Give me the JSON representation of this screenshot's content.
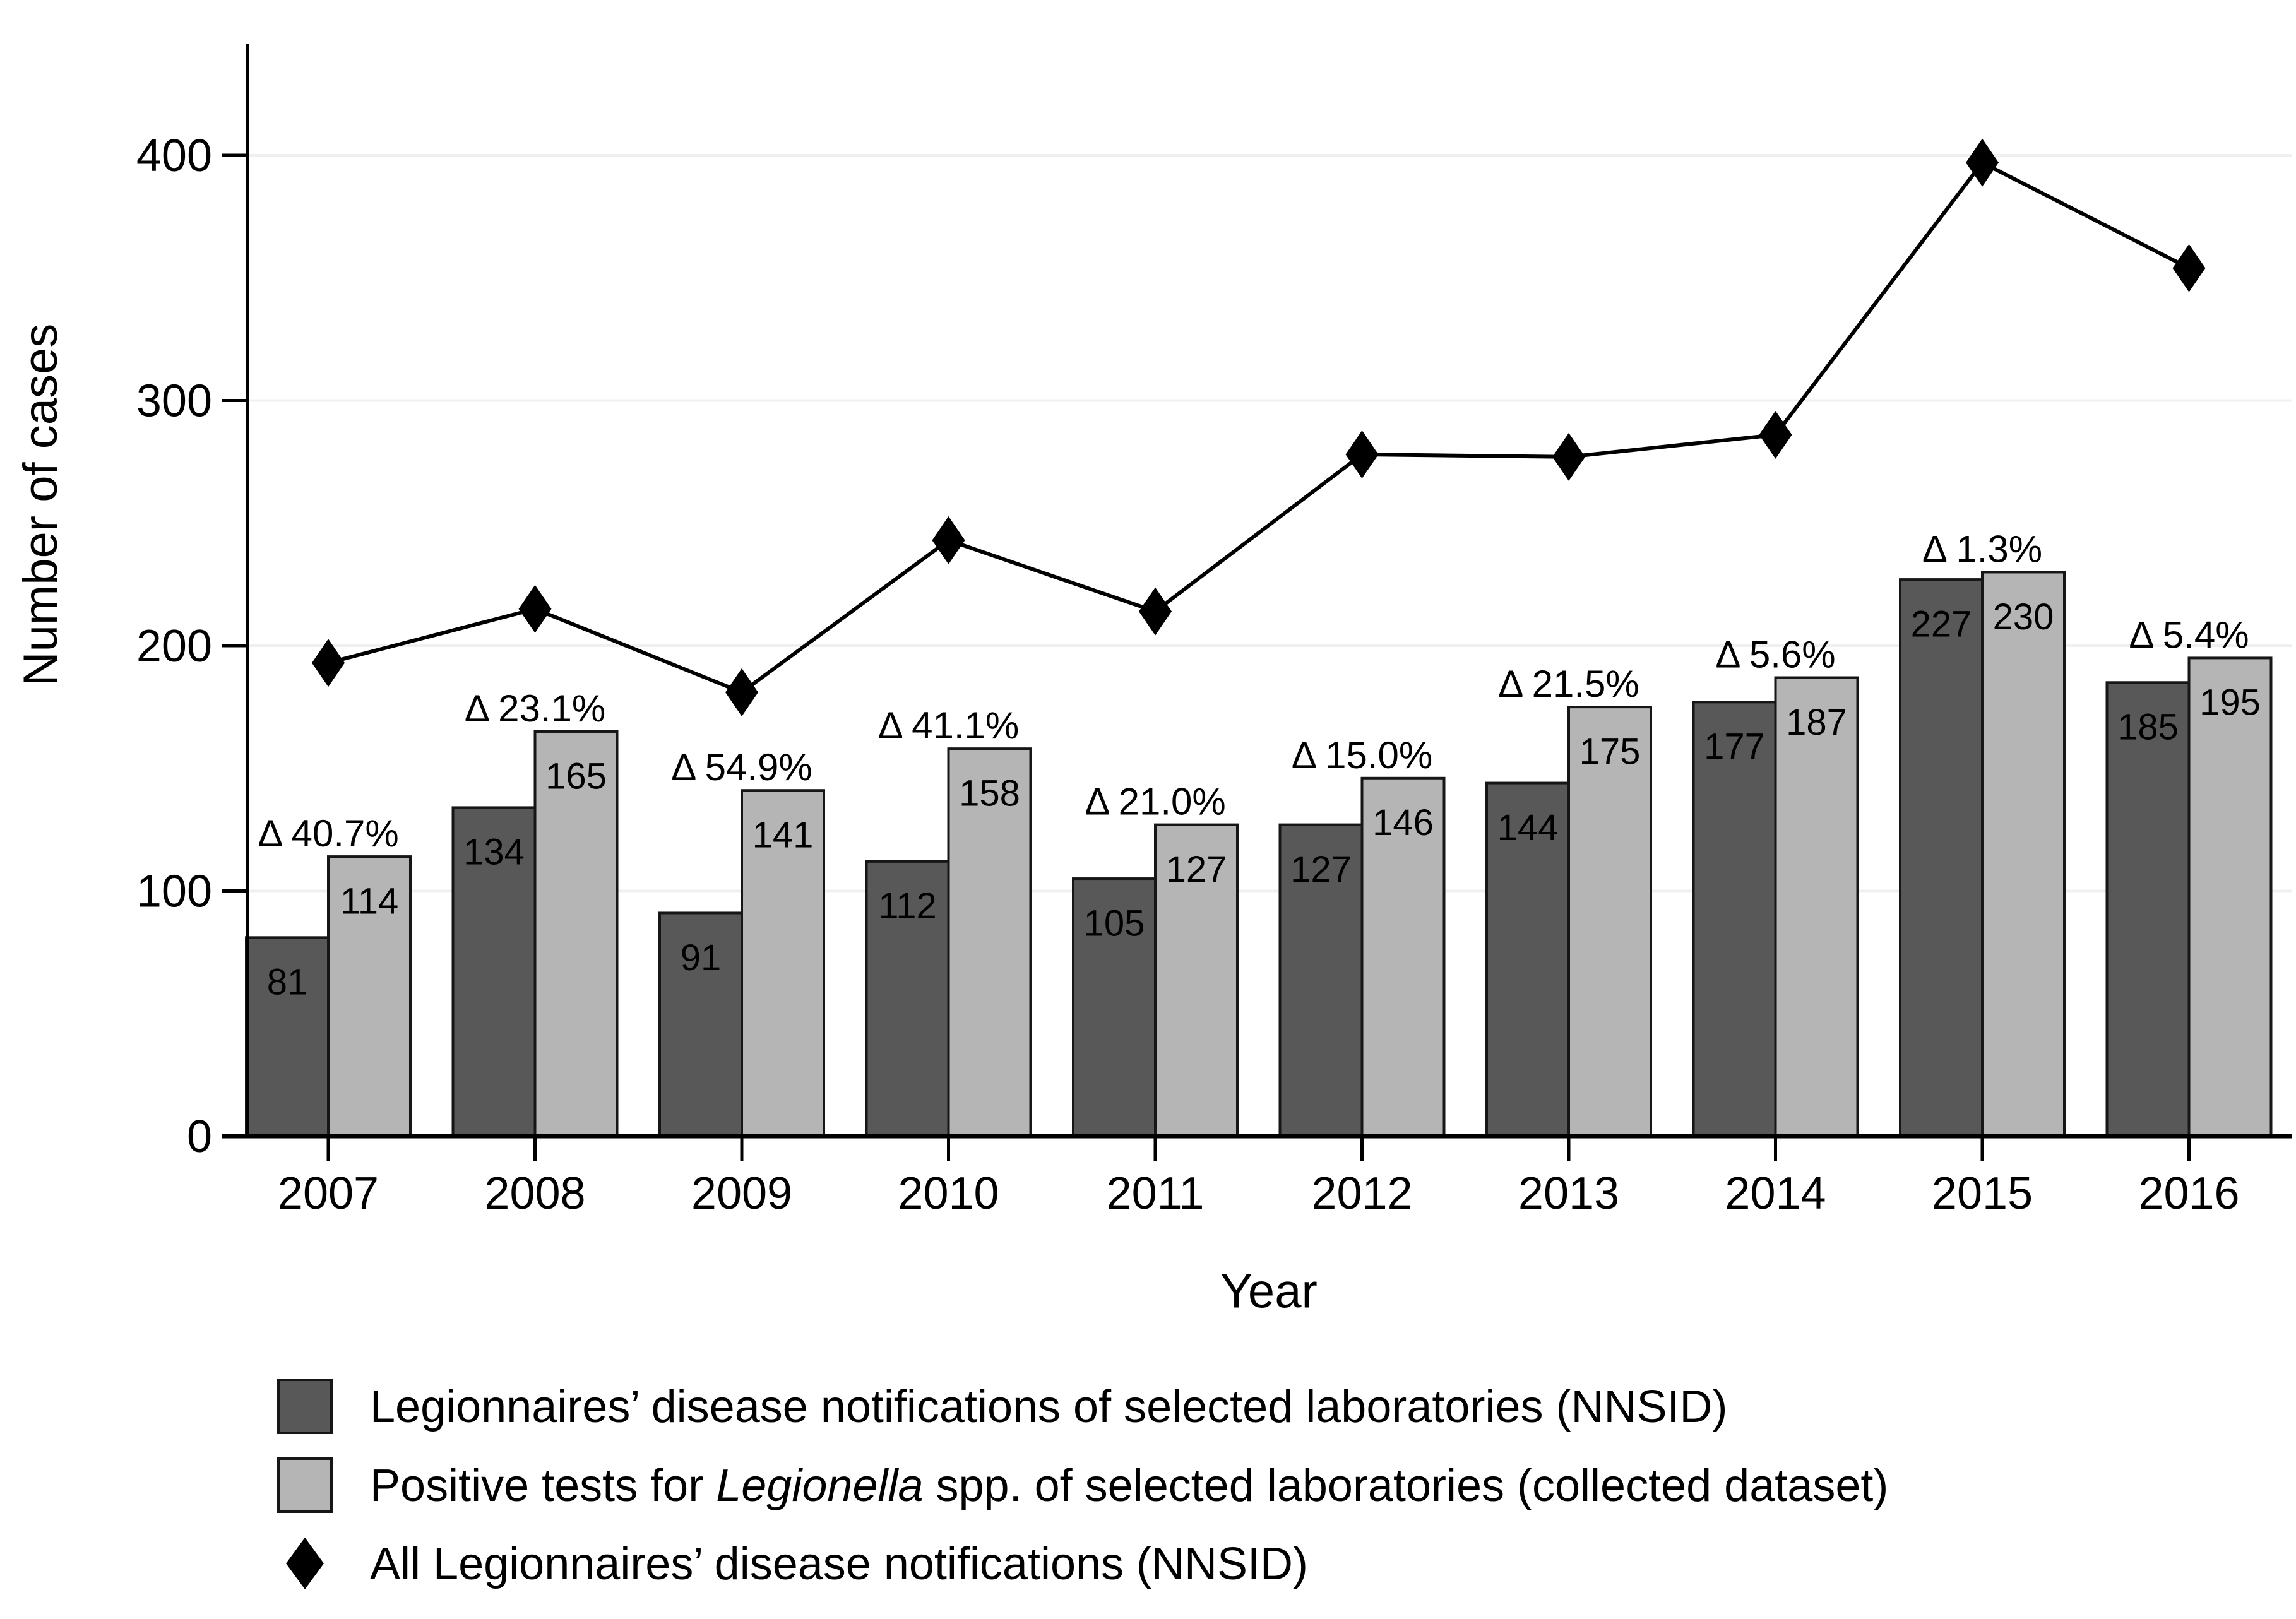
{
  "chart_data": {
    "type": "bar+line",
    "title": "",
    "xlabel": "Year",
    "ylabel": "Number of cases",
    "categories": [
      "2007",
      "2008",
      "2009",
      "2010",
      "2011",
      "2012",
      "2013",
      "2014",
      "2015",
      "2016"
    ],
    "yticks": [
      0,
      100,
      200,
      300,
      400
    ],
    "ylim": [
      0,
      445
    ],
    "grid": "horizontal",
    "legend_position": "below-chart-left",
    "series": [
      {
        "name": "Legionnaires’ disease notifications of selected laboratories (NNSID)",
        "type": "bar",
        "color": "#585858",
        "values": [
          81,
          134,
          91,
          112,
          105,
          127,
          144,
          177,
          227,
          185
        ]
      },
      {
        "name": "Positive tests for Legionella spp. of selected laboratories (collected dataset)",
        "type": "bar",
        "color": "#b5b5b5",
        "values": [
          114,
          165,
          141,
          158,
          127,
          146,
          175,
          187,
          230,
          195
        ]
      },
      {
        "name": "All Legionnaires’ disease notifications (NNSID)",
        "type": "line",
        "color": "#000000",
        "marker": "diamond",
        "values": [
          193,
          215,
          181,
          243,
          214,
          278,
          277,
          286,
          397,
          354
        ]
      }
    ],
    "delta_labels": [
      "Δ 40.7%",
      "Δ 23.1%",
      "Δ 54.9%",
      "Δ 41.1%",
      "Δ 21.0%",
      "Δ 15.0%",
      "Δ 21.5%",
      "Δ 5.6%",
      "Δ 1.3%",
      "Δ 5.4%"
    ]
  },
  "legend": {
    "items": [
      {
        "icon": "dark-square-icon",
        "pre": "Legionnaires’ disease notifications of selected laboratories (NNSID)",
        "italic": "",
        "post": ""
      },
      {
        "icon": "light-square-icon",
        "pre": "Positive tests for ",
        "italic": "Legionella",
        "post": " spp. of selected laboratories (collected dataset)"
      },
      {
        "icon": "black-diamond-icon",
        "pre": "All Legionnaires’ disease notifications (NNSID)",
        "italic": "",
        "post": ""
      }
    ]
  },
  "colors": {
    "dark_bar": "#585858",
    "light_bar": "#b5b5b5",
    "bar_border": "#161616",
    "line": "#000000",
    "gridline": "#f0f0f0",
    "axis": "#000000",
    "text": "#000000",
    "background": "#ffffff"
  }
}
